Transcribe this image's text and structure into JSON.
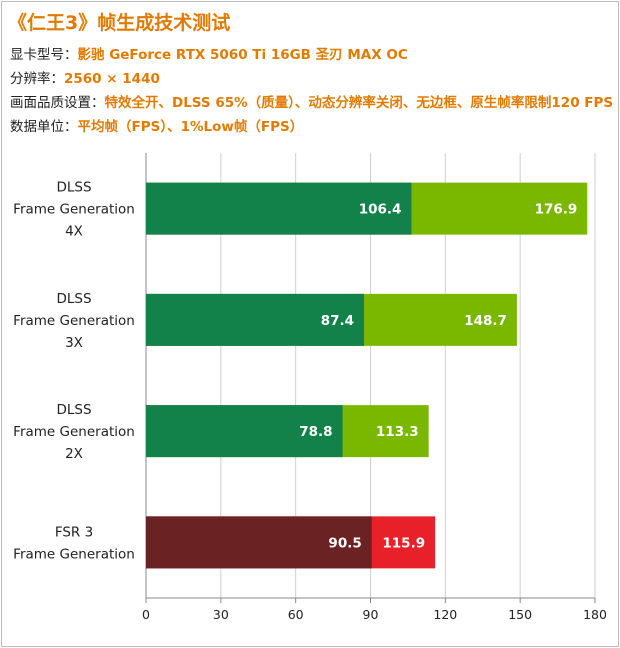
{
  "header": {
    "title": "《仁王3》帧生成技术测试",
    "rows": [
      {
        "key": "显卡型号：",
        "value": "影驰 GeForce RTX 5060 Ti 16GB 圣刃 MAX OC"
      },
      {
        "key": "分辨率：",
        "value": "2560 × 1440"
      },
      {
        "key": "画面品质设置：",
        "value": "特效全开、DLSS 65%（质量）、动态分辨率关闭、无边框、原生帧率限制120 FPS"
      },
      {
        "key": "数据单位：",
        "value": "平均帧（FPS）、1%Low帧（FPS）"
      }
    ]
  },
  "colors": {
    "green_avg": "#7ab800",
    "green_low": "#13814a",
    "red_avg": "#e8202a",
    "red_low": "#6b2222",
    "grid": "#cfcfcf",
    "axis": "#888888"
  },
  "chart_data": {
    "type": "bar",
    "orientation": "horizontal",
    "title": "",
    "xlabel": "",
    "ylabel": "",
    "xlim": [
      0,
      180
    ],
    "xticks": [
      0,
      30,
      60,
      90,
      120,
      150,
      180
    ],
    "grid": true,
    "legend": "none",
    "categories": [
      [
        "DLSS",
        "Frame Generation",
        "4X"
      ],
      [
        "DLSS",
        "Frame Generation",
        "3X"
      ],
      [
        "DLSS",
        "Frame Generation",
        "2X"
      ],
      [
        "FSR 3",
        "Frame Generation"
      ]
    ],
    "series": [
      {
        "values": [
          176.9,
          148.7,
          113.3,
          115.9
        ],
        "colors": [
          "#7ab800",
          "#7ab800",
          "#7ab800",
          "#e8202a"
        ]
      },
      {
        "values": [
          106.4,
          87.4,
          78.8,
          90.5
        ],
        "colors": [
          "#13814a",
          "#13814a",
          "#13814a",
          "#6b2222"
        ]
      }
    ]
  }
}
